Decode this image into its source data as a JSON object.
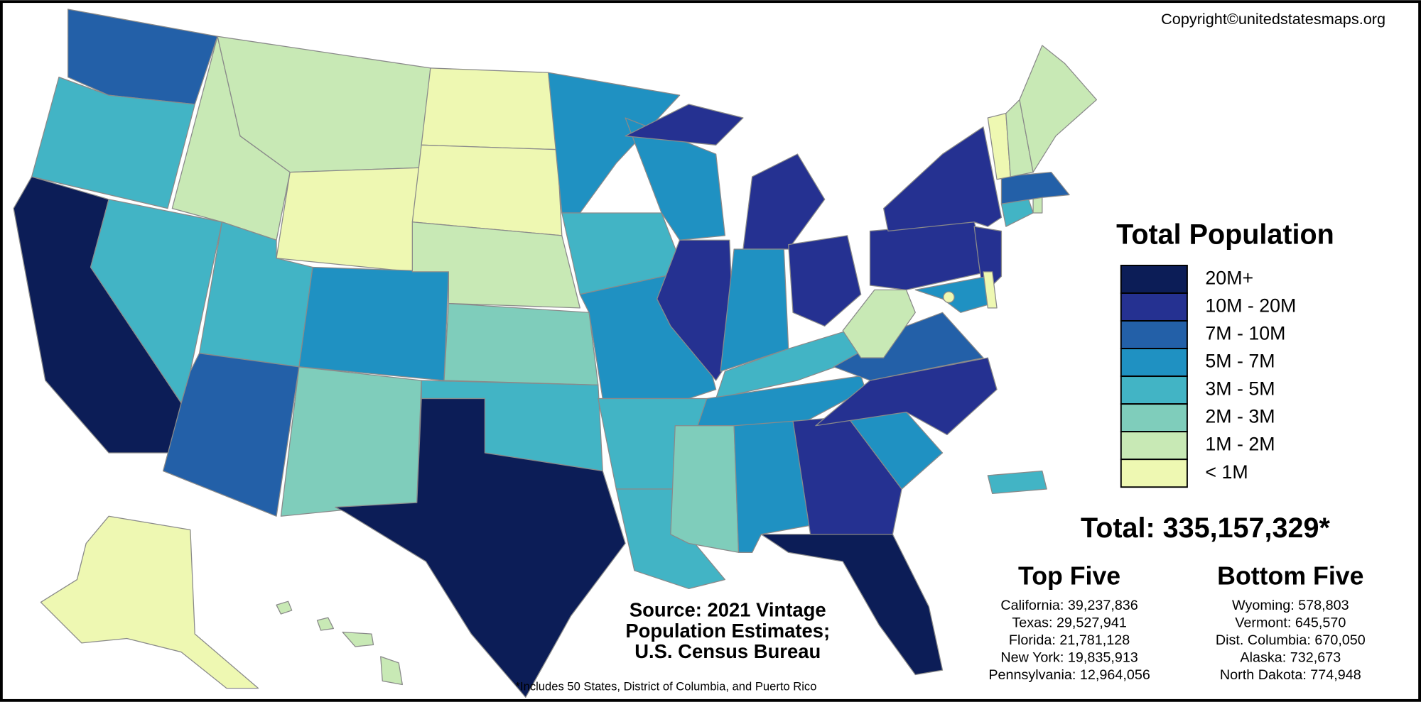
{
  "copyright": "Copyright©unitedstatesmaps.org",
  "legend": {
    "title": "Total Population",
    "items": [
      {
        "label": "20M+",
        "color": "#0c1d57"
      },
      {
        "label": "10M - 20M",
        "color": "#253191"
      },
      {
        "label": "7M - 10M",
        "color": "#2360a8"
      },
      {
        "label": "5M - 7M",
        "color": "#1f91c2"
      },
      {
        "label": "3M - 5M",
        "color": "#42b4c5"
      },
      {
        "label": "2M - 3M",
        "color": "#7fcdbb"
      },
      {
        "label": "1M - 2M",
        "color": "#c8e9b5"
      },
      {
        "label": "< 1M",
        "color": "#eef8b2"
      }
    ]
  },
  "total": "Total: 335,157,329*",
  "top_five": {
    "title": "Top Five",
    "items": [
      "California: 39,237,836",
      "Texas: 29,527,941",
      "Florida: 21,781,128",
      "New York: 19,835,913",
      "Pennsylvania: 12,964,056"
    ]
  },
  "bottom_five": {
    "title": "Bottom Five",
    "items": [
      "Wyoming: 578,803",
      "Vermont: 645,570",
      "Dist. Columbia: 670,050",
      "Alaska: 732,673",
      "North Dakota: 774,948"
    ]
  },
  "source": [
    "Source: 2021 Vintage",
    "Population Estimates;",
    "U.S. Census Bureau"
  ],
  "footnote": "*Includes 50 States, District of Columbia, and Puerto Rico"
}
